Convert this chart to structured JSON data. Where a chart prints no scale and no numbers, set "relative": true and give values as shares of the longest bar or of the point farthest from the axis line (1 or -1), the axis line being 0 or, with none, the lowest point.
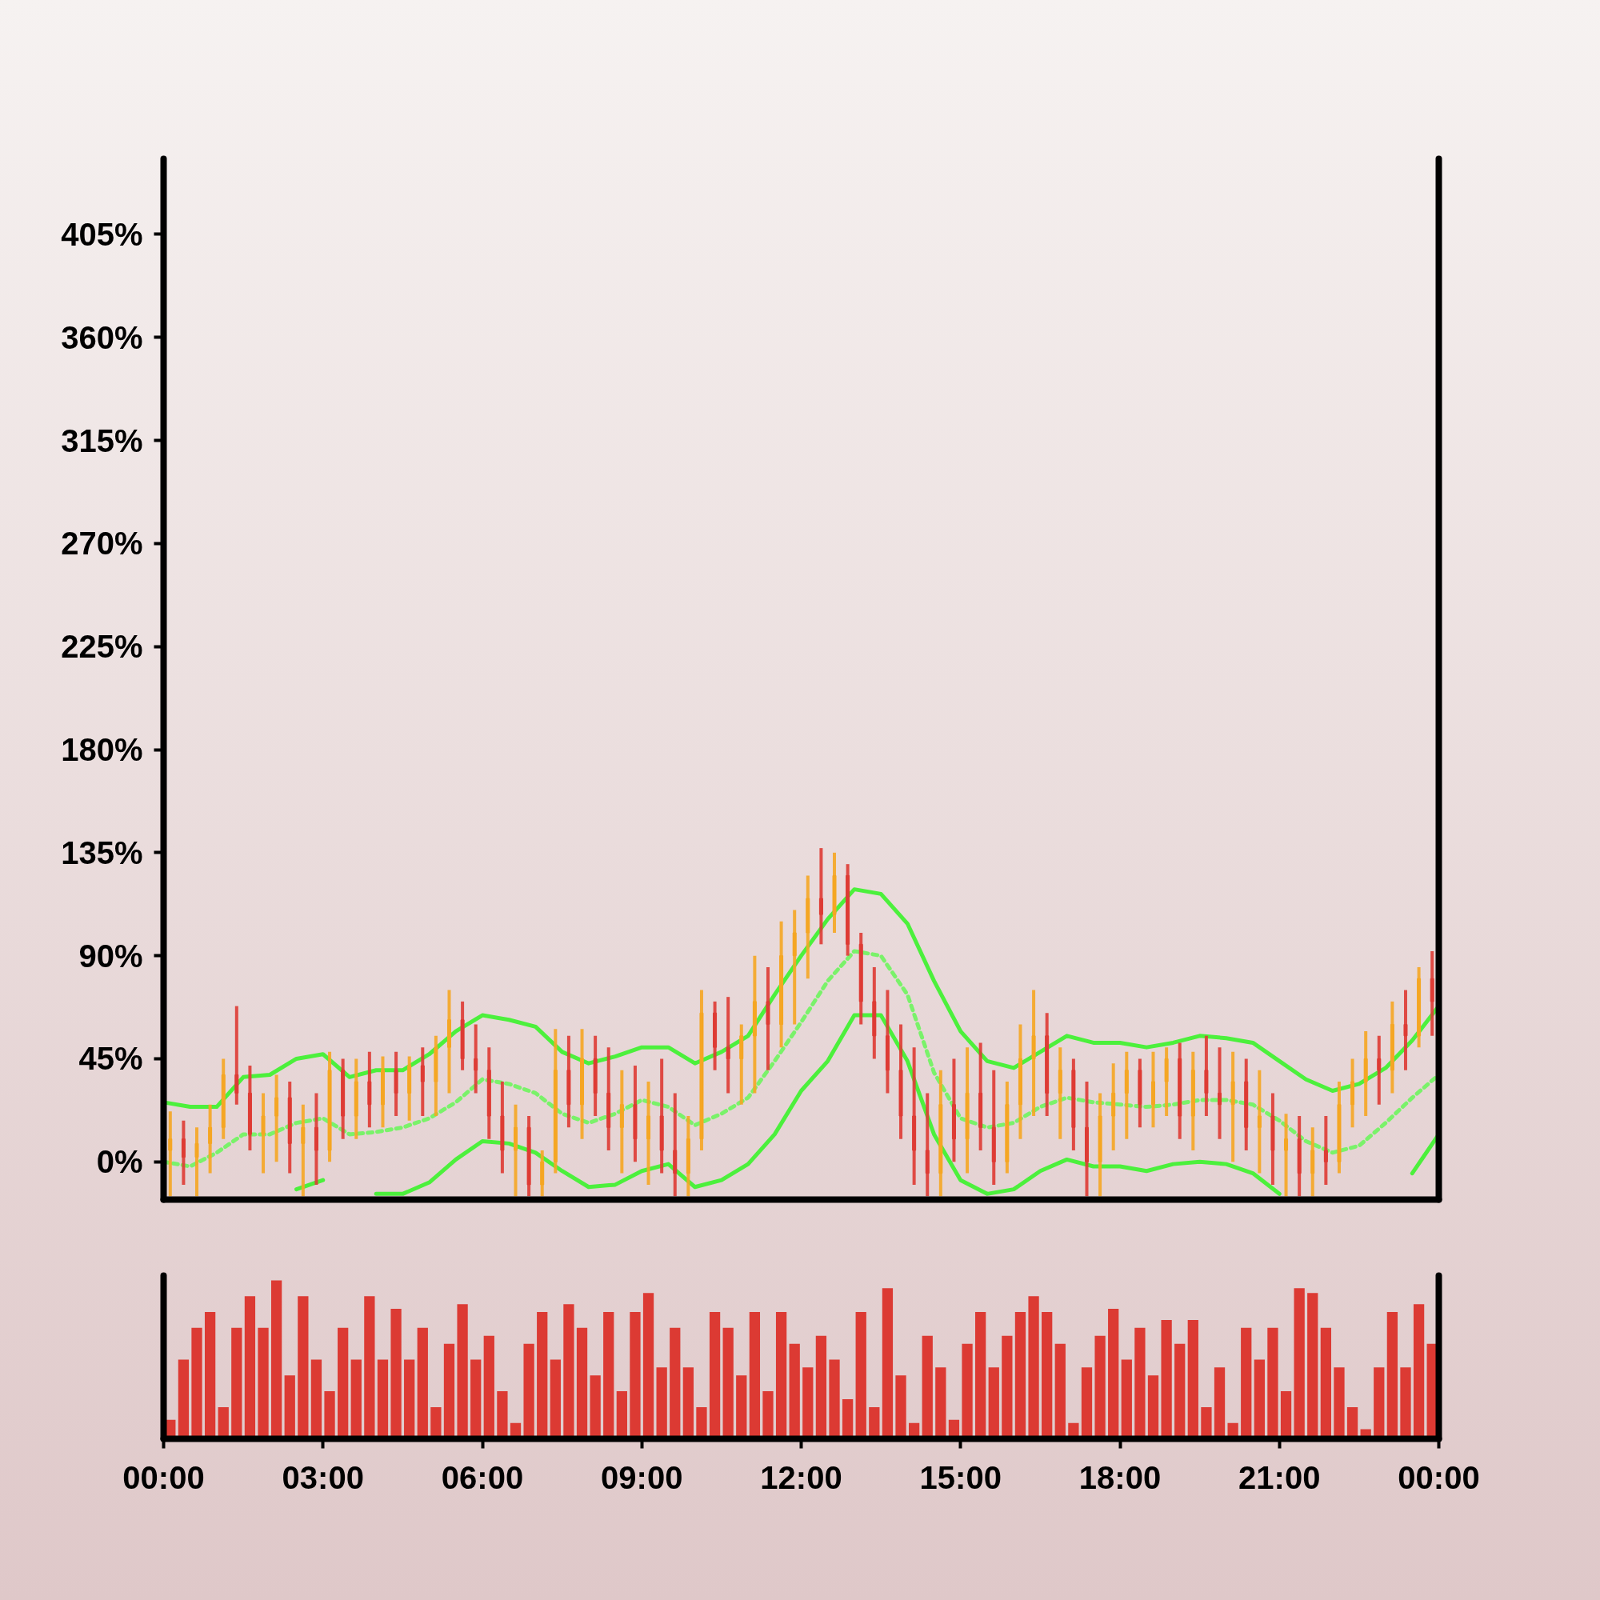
{
  "chart_data": [
    {
      "type": "candlestick",
      "x": [
        0.125,
        0.375,
        0.625,
        0.875,
        1.125,
        1.375,
        1.625,
        1.875,
        2.125,
        2.375,
        2.625,
        2.875,
        3.125,
        3.375,
        3.625,
        3.875,
        4.125,
        4.375,
        4.625,
        4.875,
        5.125,
        5.375,
        5.625,
        5.875,
        6.125,
        6.375,
        6.625,
        6.875,
        7.125,
        7.375,
        7.625,
        7.875,
        8.125,
        8.375,
        8.625,
        8.875,
        9.125,
        9.375,
        9.625,
        9.875,
        10.125,
        10.375,
        10.625,
        10.875,
        11.125,
        11.375,
        11.625,
        11.875,
        12.125,
        12.375,
        12.625,
        12.875,
        13.125,
        13.375,
        13.625,
        13.875,
        14.125,
        14.375,
        14.625,
        14.875,
        15.125,
        15.375,
        15.625,
        15.875,
        16.125,
        16.375,
        16.625,
        16.875,
        17.125,
        17.375,
        17.625,
        17.875,
        18.125,
        18.375,
        18.625,
        18.875,
        19.125,
        19.375,
        19.625,
        19.875,
        20.125,
        20.375,
        20.625,
        20.875,
        21.125,
        21.375,
        21.625,
        21.875,
        22.125,
        22.375,
        22.625,
        22.875,
        23.125,
        23.375,
        23.625,
        23.875
      ],
      "ohlc": [
        [
          5,
          22,
          -15,
          10
        ],
        [
          10,
          18,
          -10,
          2
        ],
        [
          2,
          15,
          -15,
          8
        ],
        [
          8,
          25,
          -5,
          15
        ],
        [
          15,
          45,
          10,
          38
        ],
        [
          38,
          68,
          25,
          30
        ],
        [
          30,
          42,
          5,
          12
        ],
        [
          12,
          30,
          -5,
          20
        ],
        [
          20,
          38,
          0,
          28
        ],
        [
          28,
          35,
          -5,
          8
        ],
        [
          8,
          25,
          -15,
          15
        ],
        [
          15,
          30,
          -10,
          5
        ],
        [
          5,
          48,
          0,
          40
        ],
        [
          40,
          45,
          10,
          20
        ],
        [
          20,
          45,
          10,
          35
        ],
        [
          35,
          48,
          15,
          25
        ],
        [
          25,
          46,
          15,
          40
        ],
        [
          40,
          48,
          20,
          30
        ],
        [
          30,
          46,
          18,
          42
        ],
        [
          42,
          50,
          20,
          35
        ],
        [
          35,
          55,
          20,
          50
        ],
        [
          50,
          75,
          30,
          62
        ],
        [
          62,
          70,
          40,
          45
        ],
        [
          45,
          60,
          30,
          40
        ],
        [
          40,
          50,
          10,
          20
        ],
        [
          20,
          35,
          -5,
          5
        ],
        [
          5,
          25,
          -15,
          15
        ],
        [
          15,
          20,
          -15,
          -10
        ],
        [
          -10,
          5,
          -15,
          0
        ],
        [
          0,
          58,
          -5,
          40
        ],
        [
          40,
          55,
          15,
          25
        ],
        [
          25,
          58,
          10,
          45
        ],
        [
          45,
          55,
          20,
          30
        ],
        [
          30,
          50,
          5,
          15
        ],
        [
          15,
          40,
          -5,
          25
        ],
        [
          25,
          42,
          0,
          10
        ],
        [
          10,
          35,
          -10,
          20
        ],
        [
          20,
          45,
          -5,
          5
        ],
        [
          5,
          30,
          -15,
          -5
        ],
        [
          -5,
          20,
          -15,
          10
        ],
        [
          10,
          75,
          5,
          65
        ],
        [
          65,
          70,
          40,
          50
        ],
        [
          50,
          72,
          30,
          45
        ],
        [
          45,
          60,
          25,
          55
        ],
        [
          55,
          90,
          30,
          70
        ],
        [
          70,
          85,
          40,
          60
        ],
        [
          60,
          105,
          50,
          90
        ],
        [
          90,
          110,
          60,
          100
        ],
        [
          100,
          125,
          80,
          115
        ],
        [
          115,
          137,
          95,
          108
        ],
        [
          108,
          135,
          100,
          125
        ],
        [
          125,
          130,
          90,
          95
        ],
        [
          95,
          100,
          60,
          70
        ],
        [
          70,
          85,
          45,
          55
        ],
        [
          55,
          75,
          30,
          40
        ],
        [
          40,
          60,
          10,
          20
        ],
        [
          20,
          50,
          -10,
          5
        ],
        [
          5,
          30,
          -15,
          -5
        ],
        [
          -5,
          40,
          -15,
          25
        ],
        [
          25,
          45,
          0,
          10
        ],
        [
          10,
          50,
          -5,
          30
        ],
        [
          30,
          52,
          5,
          15
        ],
        [
          15,
          40,
          -10,
          0
        ],
        [
          0,
          35,
          -5,
          25
        ],
        [
          25,
          60,
          10,
          45
        ],
        [
          45,
          75,
          20,
          55
        ],
        [
          55,
          65,
          20,
          30
        ],
        [
          30,
          50,
          10,
          40
        ],
        [
          40,
          45,
          5,
          15
        ],
        [
          15,
          35,
          -15,
          0
        ],
        [
          0,
          30,
          -15,
          20
        ],
        [
          20,
          43,
          5,
          30
        ],
        [
          30,
          48,
          10,
          40
        ],
        [
          40,
          45,
          15,
          25
        ],
        [
          25,
          48,
          15,
          35
        ],
        [
          35,
          50,
          20,
          45
        ],
        [
          45,
          52,
          10,
          20
        ],
        [
          20,
          48,
          5,
          40
        ],
        [
          40,
          55,
          20,
          30
        ],
        [
          30,
          50,
          10,
          25
        ],
        [
          25,
          48,
          0,
          35
        ],
        [
          35,
          45,
          5,
          15
        ],
        [
          15,
          40,
          -5,
          20
        ],
        [
          20,
          30,
          -10,
          5
        ],
        [
          5,
          21,
          -15,
          10
        ],
        [
          10,
          20,
          -15,
          -5
        ],
        [
          -5,
          15,
          -15,
          5
        ],
        [
          5,
          20,
          -10,
          0
        ],
        [
          0,
          35,
          -5,
          25
        ],
        [
          25,
          45,
          15,
          35
        ],
        [
          35,
          57,
          20,
          45
        ],
        [
          45,
          55,
          25,
          40
        ],
        [
          40,
          70,
          30,
          60
        ],
        [
          60,
          75,
          40,
          55
        ],
        [
          55,
          85,
          50,
          80
        ],
        [
          80,
          92,
          55,
          70
        ]
      ],
      "colors": [
        "#f5a623",
        "#de3b34",
        "#f5a623",
        "#f5a623",
        "#f5a623",
        "#de3b34",
        "#de3b34",
        "#f5a623",
        "#f5a623",
        "#de3b34",
        "#f5a623",
        "#de3b34",
        "#f5a623",
        "#de3b34",
        "#f5a623",
        "#de3b34",
        "#f5a623",
        "#de3b34",
        "#f5a623",
        "#de3b34",
        "#f5a623",
        "#f5a623",
        "#de3b34",
        "#de3b34",
        "#de3b34",
        "#de3b34",
        "#f5a623",
        "#de3b34",
        "#f5a623",
        "#f5a623",
        "#de3b34",
        "#f5a623",
        "#de3b34",
        "#de3b34",
        "#f5a623",
        "#de3b34",
        "#f5a623",
        "#de3b34",
        "#de3b34",
        "#f5a623",
        "#f5a623",
        "#de3b34",
        "#de3b34",
        "#f5a623",
        "#f5a623",
        "#de3b34",
        "#f5a623",
        "#f5a623",
        "#f5a623",
        "#de3b34",
        "#f5a623",
        "#de3b34",
        "#de3b34",
        "#de3b34",
        "#de3b34",
        "#de3b34",
        "#de3b34",
        "#de3b34",
        "#f5a623",
        "#de3b34",
        "#f5a623",
        "#de3b34",
        "#de3b34",
        "#f5a623",
        "#f5a623",
        "#f5a623",
        "#de3b34",
        "#f5a623",
        "#de3b34",
        "#de3b34",
        "#f5a623",
        "#f5a623",
        "#f5a623",
        "#de3b34",
        "#f5a623",
        "#f5a623",
        "#de3b34",
        "#f5a623",
        "#de3b34",
        "#de3b34",
        "#f5a623",
        "#de3b34",
        "#f5a623",
        "#de3b34",
        "#f5a623",
        "#de3b34",
        "#f5a623",
        "#de3b34",
        "#f5a623",
        "#f5a623",
        "#f5a623",
        "#de3b34",
        "#f5a623",
        "#de3b34",
        "#f5a623",
        "#de3b34"
      ],
      "series": [
        {
          "type": "line",
          "color": "#4cf03c",
          "line_style": "solid",
          "x": [
            0,
            0.5,
            1,
            1.5,
            2,
            2.5,
            3,
            3.5,
            4,
            4.5,
            5,
            5.5,
            6,
            6.5,
            7,
            7.5,
            8,
            8.5,
            9,
            9.5,
            10,
            10.5,
            11,
            11.5,
            12,
            12.5,
            13,
            13.5,
            14,
            14.5,
            15,
            15.5,
            16,
            16.5,
            17,
            17.5,
            18,
            18.5,
            19,
            19.5,
            20,
            20.5,
            21,
            21.5,
            22,
            22.5,
            23,
            23.5,
            24
          ],
          "values": [
            26,
            24,
            24,
            37,
            38,
            45,
            47,
            37,
            40,
            40,
            47,
            57,
            64,
            62,
            59,
            48,
            43,
            46,
            50,
            50,
            43,
            48,
            55,
            73,
            90,
            106,
            119,
            117,
            104,
            79,
            57,
            44,
            41,
            48,
            55,
            52,
            52,
            50,
            52,
            55,
            54,
            52,
            44,
            36,
            31,
            34,
            41,
            53,
            68
          ]
        },
        {
          "type": "line",
          "color": "#7af26a",
          "line_style": "dashed",
          "x": [
            0,
            0.5,
            1,
            1.5,
            2,
            2.5,
            3,
            3.5,
            4,
            4.5,
            5,
            5.5,
            6,
            6.5,
            7,
            7.5,
            8,
            8.5,
            9,
            9.5,
            10,
            10.5,
            11,
            11.5,
            12,
            12.5,
            13,
            13.5,
            14,
            14.5,
            15,
            15.5,
            16,
            16.5,
            17,
            17.5,
            18,
            18.5,
            19,
            19.5,
            20,
            20.5,
            21,
            21.5,
            22,
            22.5,
            23,
            23.5,
            24
          ],
          "values": [
            0,
            -2,
            4,
            12,
            12,
            17,
            19,
            12,
            13,
            15,
            19,
            26,
            36,
            34,
            30,
            21,
            17,
            21,
            27,
            24,
            16,
            21,
            28,
            44,
            61,
            79,
            92,
            90,
            73,
            39,
            19,
            15,
            17,
            24,
            28,
            26,
            25,
            24,
            25,
            27,
            27,
            25,
            18,
            9,
            4,
            7,
            17,
            28,
            38
          ]
        },
        {
          "type": "line",
          "color": "#4cf03c",
          "line_style": "solid",
          "x": [
            2.5,
            3,
            3.5,
            4,
            4.5,
            5,
            5.5,
            6,
            6.5,
            7,
            7.5,
            8,
            8.5,
            9,
            9.5,
            10,
            10.5,
            11,
            11.5,
            12,
            12.5,
            13,
            13.5,
            14,
            14.5,
            15,
            15.5,
            16,
            16.5,
            17,
            17.5,
            18,
            18.5,
            19,
            19.5,
            20,
            20.5,
            21,
            21.5,
            22,
            22.5,
            23,
            23.5,
            24
          ],
          "values": [
            -12,
            -8,
            null,
            -14,
            -14,
            -9,
            1,
            9,
            8,
            4,
            -4,
            -11,
            -10,
            -4,
            -1,
            -11,
            -8,
            -1,
            12,
            31,
            44,
            64,
            64,
            44,
            12,
            -8,
            -14,
            -12,
            -4,
            1,
            -2,
            -2,
            -4,
            -1,
            0,
            -1,
            -5,
            -14,
            null,
            null,
            null,
            null,
            -5,
            12
          ]
        }
      ],
      "xlim": [
        0,
        24
      ],
      "ylim": [
        -16.5,
        438
      ],
      "yticks": [
        {
          "value": 0,
          "label": "0%"
        },
        {
          "value": 45,
          "label": "45%"
        },
        {
          "value": 90,
          "label": "90%"
        },
        {
          "value": 135,
          "label": "135%"
        },
        {
          "value": 180,
          "label": "180%"
        },
        {
          "value": 225,
          "label": "225%"
        },
        {
          "value": 270,
          "label": "270%"
        },
        {
          "value": 315,
          "label": "315%"
        },
        {
          "value": 360,
          "label": "360%"
        },
        {
          "value": 405,
          "label": "405%"
        }
      ],
      "tick_labels": "y"
    },
    {
      "type": "bar",
      "relative": true,
      "color": "#dc3a33",
      "x": [
        0.125,
        0.375,
        0.625,
        0.875,
        1.125,
        1.375,
        1.625,
        1.875,
        2.125,
        2.375,
        2.625,
        2.875,
        3.125,
        3.375,
        3.625,
        3.875,
        4.125,
        4.375,
        4.625,
        4.875,
        5.125,
        5.375,
        5.625,
        5.875,
        6.125,
        6.375,
        6.625,
        6.875,
        7.125,
        7.375,
        7.625,
        7.875,
        8.125,
        8.375,
        8.625,
        8.875,
        9.125,
        9.375,
        9.625,
        9.875,
        10.125,
        10.375,
        10.625,
        10.875,
        11.125,
        11.375,
        11.625,
        11.875,
        12.125,
        12.375,
        12.625,
        12.875,
        13.125,
        13.375,
        13.625,
        13.875,
        14.125,
        14.375,
        14.625,
        14.875,
        15.125,
        15.375,
        15.625,
        15.875,
        16.125,
        16.375,
        16.625,
        16.875,
        17.125,
        17.375,
        17.625,
        17.875,
        18.125,
        18.375,
        18.625,
        18.875,
        19.125,
        19.375,
        19.625,
        19.875,
        20.125,
        20.375,
        20.625,
        20.875,
        21.125,
        21.375,
        21.625,
        21.875,
        22.125,
        22.375,
        22.625,
        22.875,
        23.125,
        23.375,
        23.625,
        23.875
      ],
      "values": [
        0.12,
        0.5,
        0.7,
        0.8,
        0.2,
        0.7,
        0.9,
        0.7,
        1,
        0.4,
        0.9,
        0.5,
        0.3,
        0.7,
        0.5,
        0.9,
        0.5,
        0.82,
        0.5,
        0.7,
        0.2,
        0.6,
        0.85,
        0.5,
        0.65,
        0.3,
        0.1,
        0.6,
        0.8,
        0.5,
        0.85,
        0.7,
        0.4,
        0.8,
        0.3,
        0.8,
        0.92,
        0.45,
        0.7,
        0.45,
        0.2,
        0.8,
        0.7,
        0.4,
        0.8,
        0.3,
        0.8,
        0.6,
        0.45,
        0.65,
        0.5,
        0.25,
        0.8,
        0.2,
        0.95,
        0.4,
        0.1,
        0.65,
        0.45,
        0.12,
        0.6,
        0.8,
        0.45,
        0.65,
        0.8,
        0.9,
        0.8,
        0.6,
        0.1,
        0.45,
        0.65,
        0.82,
        0.5,
        0.7,
        0.4,
        0.75,
        0.6,
        0.75,
        0.2,
        0.45,
        0.1,
        0.7,
        0.5,
        0.7,
        0.3,
        0.95,
        0.92,
        0.7,
        0.45,
        0.2,
        0.06,
        0.45,
        0.8,
        0.45,
        0.85,
        0.6
      ],
      "xlim": [
        0,
        24
      ],
      "xticks": [
        {
          "value": 0,
          "label": "00:00"
        },
        {
          "value": 3,
          "label": "03:00"
        },
        {
          "value": 6,
          "label": "06:00"
        },
        {
          "value": 9,
          "label": "09:00"
        },
        {
          "value": 12,
          "label": "12:00"
        },
        {
          "value": 15,
          "label": "15:00"
        },
        {
          "value": 18,
          "label": "18:00"
        },
        {
          "value": 21,
          "label": "21:00"
        },
        {
          "value": 24,
          "label": "00:00"
        }
      ],
      "tick_labels": "x"
    }
  ]
}
